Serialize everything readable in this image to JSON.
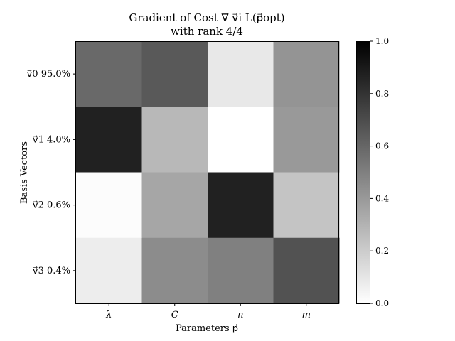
{
  "chart_data": {
    "type": "heatmap",
    "title_line1": "Gradient of Cost ∇⃗ v⃗i L(p⃗opt)",
    "title_line2": "with rank 4/4",
    "xlabel": "Parameters p⃗",
    "ylabel": "Basis Vectors",
    "x_categories": [
      "λ",
      "C",
      "n",
      "m"
    ],
    "y_categories": [
      "v⃗0 95.0%",
      "v⃗1 4.0%",
      "v⃗2 0.6%",
      "v⃗3 0.4%"
    ],
    "values": [
      [
        0.59,
        0.65,
        0.09,
        0.42
      ],
      [
        0.87,
        0.28,
        0.0,
        0.4
      ],
      [
        0.01,
        0.35,
        0.87,
        0.23
      ],
      [
        0.07,
        0.45,
        0.5,
        0.68
      ]
    ],
    "colormap": "gray_r",
    "vmin": 0.0,
    "vmax": 1.0,
    "colorbar_ticks": [
      "0.0",
      "0.2",
      "0.4",
      "0.6",
      "0.8",
      "1.0"
    ]
  }
}
